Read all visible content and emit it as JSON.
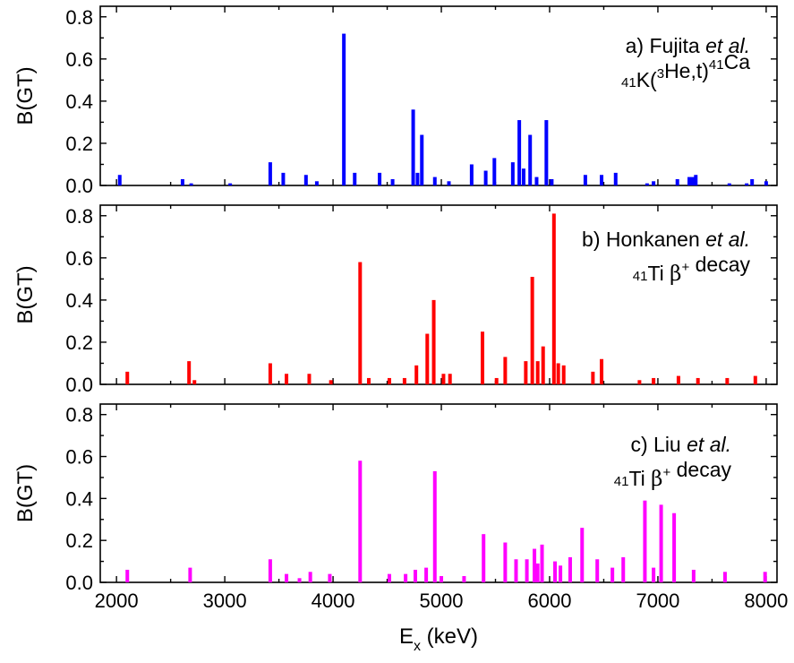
{
  "chart_data": [
    {
      "type": "bar",
      "panel": "a",
      "color": "#0000ff",
      "annotation_lines": [
        [
          {
            "t": "a) Fujita "
          },
          {
            "t": "et al.",
            "it": true
          }
        ],
        [
          {
            "t": "41",
            "sup": true
          },
          {
            "t": "K("
          },
          {
            "t": "3",
            "sup": true
          },
          {
            "t": "He,t)"
          },
          {
            "t": "41",
            "sup": true
          },
          {
            "t": "Ca"
          }
        ]
      ],
      "ylabel": "B(GT)",
      "ylim": [
        0,
        0.85
      ],
      "yticks": [
        0.0,
        0.2,
        0.4,
        0.6,
        0.8
      ],
      "ytick_labels": [
        "0.0",
        "0.2",
        "0.4",
        "0.6",
        "0.8"
      ],
      "x": [
        2030,
        2610,
        2690,
        3050,
        3420,
        3540,
        3750,
        3850,
        4100,
        4200,
        4430,
        4550,
        4740,
        4780,
        4820,
        4940,
        5070,
        5280,
        5410,
        5490,
        5660,
        5720,
        5760,
        5820,
        5880,
        5970,
        6020,
        6330,
        6480,
        6610,
        6900,
        6960,
        7180,
        7290,
        7320,
        7350,
        7660,
        7820,
        7870,
        8000
      ],
      "values": [
        0.05,
        0.03,
        0.01,
        0.01,
        0.11,
        0.06,
        0.05,
        0.02,
        0.72,
        0.06,
        0.06,
        0.03,
        0.36,
        0.06,
        0.24,
        0.04,
        0.02,
        0.1,
        0.07,
        0.13,
        0.11,
        0.31,
        0.08,
        0.24,
        0.04,
        0.31,
        0.03,
        0.05,
        0.05,
        0.06,
        0.01,
        0.02,
        0.03,
        0.04,
        0.04,
        0.05,
        0.01,
        0.01,
        0.03,
        0.02
      ]
    },
    {
      "type": "bar",
      "panel": "b",
      "color": "#ff0000",
      "annotation_lines": [
        [
          {
            "t": "b) Honkanen "
          },
          {
            "t": "et al.",
            "it": true
          }
        ],
        [
          {
            "t": "41",
            "sup": true
          },
          {
            "t": "Ti "
          },
          {
            "t": "β",
            "greek": true
          },
          {
            "t": "+",
            "sup": true
          },
          {
            "t": " decay"
          }
        ]
      ],
      "ylabel": "B(GT)",
      "ylim": [
        0,
        0.85
      ],
      "yticks": [
        0.0,
        0.2,
        0.4,
        0.6,
        0.8
      ],
      "ytick_labels": [
        "0.0",
        "0.2",
        "0.4",
        "0.6",
        "0.8"
      ],
      "x": [
        2100,
        2670,
        2720,
        3420,
        3570,
        3780,
        3980,
        4250,
        4330,
        4520,
        4660,
        4770,
        4870,
        4930,
        5020,
        5080,
        5380,
        5510,
        5590,
        5780,
        5840,
        5890,
        5940,
        6040,
        6080,
        6130,
        6400,
        6480,
        6830,
        6960,
        7190,
        7370,
        7640,
        7900
      ],
      "values": [
        0.06,
        0.11,
        0.02,
        0.1,
        0.05,
        0.05,
        0.02,
        0.58,
        0.03,
        0.03,
        0.03,
        0.09,
        0.24,
        0.4,
        0.05,
        0.05,
        0.25,
        0.03,
        0.13,
        0.11,
        0.51,
        0.11,
        0.18,
        0.81,
        0.1,
        0.09,
        0.06,
        0.12,
        0.02,
        0.03,
        0.04,
        0.03,
        0.03,
        0.04
      ]
    },
    {
      "type": "bar",
      "panel": "c",
      "color": "#ff00ff",
      "annotation_lines": [
        [
          {
            "t": "c) Liu "
          },
          {
            "t": "et al.",
            "it": true
          }
        ],
        [
          {
            "t": "41",
            "sup": true
          },
          {
            "t": "Ti "
          },
          {
            "t": "β",
            "greek": true
          },
          {
            "t": "+",
            "sup": true
          },
          {
            "t": " decay"
          }
        ]
      ],
      "ylabel": "B(GT)",
      "xlabel": "E",
      "xlabel_sub": "x",
      "xlabel_unit": " (keV)",
      "ylim": [
        0,
        0.85
      ],
      "yticks": [
        0.0,
        0.2,
        0.4,
        0.6,
        0.8
      ],
      "ytick_labels": [
        "0.0",
        "0.2",
        "0.4",
        "0.6",
        "0.8"
      ],
      "x": [
        2100,
        2680,
        3420,
        3570,
        3690,
        3790,
        3970,
        4250,
        4520,
        4670,
        4760,
        4860,
        4940,
        5000,
        5210,
        5390,
        5590,
        5690,
        5790,
        5860,
        5890,
        5930,
        6050,
        6100,
        6190,
        6300,
        6440,
        6580,
        6680,
        6880,
        6960,
        7030,
        7150,
        7330,
        7620,
        7990
      ],
      "values": [
        0.06,
        0.07,
        0.11,
        0.04,
        0.02,
        0.05,
        0.04,
        0.58,
        0.04,
        0.04,
        0.06,
        0.07,
        0.53,
        0.03,
        0.03,
        0.23,
        0.19,
        0.11,
        0.11,
        0.16,
        0.09,
        0.18,
        0.1,
        0.08,
        0.12,
        0.26,
        0.11,
        0.07,
        0.12,
        0.39,
        0.07,
        0.37,
        0.33,
        0.06,
        0.05,
        0.05
      ]
    }
  ],
  "x_axis": {
    "xlim": [
      1850,
      8100
    ],
    "ticks": [
      2000,
      3000,
      4000,
      5000,
      6000,
      7000,
      8000
    ],
    "tick_labels": [
      "2000",
      "3000",
      "4000",
      "5000",
      "6000",
      "7000",
      "8000"
    ]
  }
}
